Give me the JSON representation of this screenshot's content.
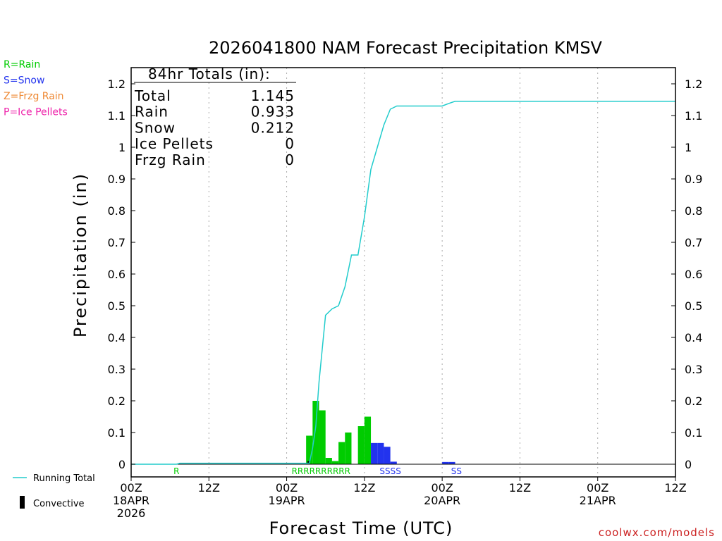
{
  "chart_data": {
    "type": "bar",
    "title": "2026041800 NAM Forecast Precipitation KMSV",
    "xlabel": "Forecast Time (UTC)",
    "ylabel": "Precipitation (in)",
    "ylim": [
      0,
      1.25
    ],
    "xlim_hours": [
      0,
      84
    ],
    "y_ticks": [
      "0",
      "0.1",
      "0.2",
      "0.3",
      "0.4",
      "0.5",
      "0.6",
      "0.7",
      "0.8",
      "0.9",
      "1",
      "1.1",
      "1.2"
    ],
    "x_ticks": [
      {
        "hour": 0,
        "lines": [
          "00Z",
          "18APR",
          "2026"
        ]
      },
      {
        "hour": 12,
        "lines": [
          "12Z"
        ]
      },
      {
        "hour": 24,
        "lines": [
          "00Z",
          "19APR"
        ]
      },
      {
        "hour": 36,
        "lines": [
          "12Z"
        ]
      },
      {
        "hour": 48,
        "lines": [
          "00Z",
          "20APR"
        ]
      },
      {
        "hour": 60,
        "lines": [
          "12Z"
        ]
      },
      {
        "hour": 72,
        "lines": [
          "00Z",
          "21APR"
        ]
      },
      {
        "hour": 84,
        "lines": [
          "12Z"
        ]
      }
    ],
    "gridlines_at_hours": [
      12,
      24,
      36,
      48,
      60,
      72
    ],
    "type_legend": [
      {
        "label": "R=Rain",
        "color": "#00cc00"
      },
      {
        "label": "S=Snow",
        "color": "#2233ee"
      },
      {
        "label": "Z=Frzg Rain",
        "color": "#ee8833"
      },
      {
        "label": "P=Ice Pellets",
        "color": "#ee22aa"
      }
    ],
    "totals_box": {
      "heading": "84hr Totals (in):",
      "rows": [
        {
          "label": "Total",
          "value": "1.145"
        },
        {
          "label": "Rain",
          "value": "0.933"
        },
        {
          "label": "Snow",
          "value": "0.212"
        },
        {
          "label": "Ice Pellets",
          "value": "0"
        },
        {
          "label": "Frzg Rain",
          "value": "0"
        }
      ]
    },
    "bars": [
      {
        "hour": 28,
        "value": 0.09,
        "type": "R",
        "convective": 0.01
      },
      {
        "hour": 29,
        "value": 0.2,
        "type": "R",
        "convective": 0
      },
      {
        "hour": 30,
        "value": 0.17,
        "type": "R",
        "convective": 0
      },
      {
        "hour": 31,
        "value": 0.02,
        "type": "R",
        "convective": 0
      },
      {
        "hour": 32,
        "value": 0.01,
        "type": "R",
        "convective": 0
      },
      {
        "hour": 33,
        "value": 0.07,
        "type": "R",
        "convective": 0
      },
      {
        "hour": 34,
        "value": 0.1,
        "type": "R",
        "convective": 0
      },
      {
        "hour": 36,
        "value": 0.12,
        "type": "R",
        "convective": 0
      },
      {
        "hour": 37,
        "value": 0.15,
        "type": "R",
        "convective": 0
      },
      {
        "hour": 38,
        "value": 0.067,
        "type": "S",
        "convective": 0
      },
      {
        "hour": 39,
        "value": 0.067,
        "type": "S",
        "convective": 0
      },
      {
        "hour": 40,
        "value": 0.055,
        "type": "S",
        "convective": 0
      },
      {
        "hour": 41,
        "value": 0.008,
        "type": "S",
        "convective": 0
      },
      {
        "hour": 49,
        "value": 0.007,
        "type": "S",
        "convective": 0
      },
      {
        "hour": 50,
        "value": 0.007,
        "type": "S",
        "convective": 0
      }
    ],
    "type_markers": [
      {
        "hour": 7,
        "type": "R",
        "label": "R"
      },
      {
        "hour": 29.3,
        "type": "R",
        "label": "RRRRRRRRRR"
      },
      {
        "hour": 40,
        "type": "S",
        "label": "SSSS"
      },
      {
        "hour": 50.2,
        "type": "S",
        "label": "SS"
      }
    ],
    "running_total": {
      "hours": [
        0,
        7,
        7.5,
        27.5,
        28,
        28.5,
        29,
        30,
        31,
        32,
        33,
        34,
        34.5,
        35,
        35.5,
        36,
        37,
        38,
        39,
        40,
        41,
        42,
        48,
        49,
        50,
        84
      ],
      "values": [
        0,
        0,
        0.003,
        0.003,
        0.05,
        0.12,
        0.26,
        0.47,
        0.49,
        0.5,
        0.56,
        0.66,
        0.66,
        0.66,
        0.72,
        0.78,
        0.93,
        1.0,
        1.07,
        1.12,
        1.13,
        1.13,
        1.13,
        1.138,
        1.145,
        1.145
      ],
      "color": "#22cccc"
    },
    "bottom_legend": {
      "running_total_label": "Running Total",
      "convective_label": "Convective"
    },
    "credit": "coolwx.com/models"
  }
}
